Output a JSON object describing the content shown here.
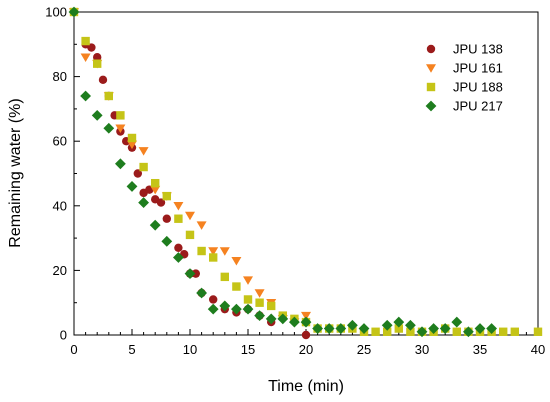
{
  "chart_data": {
    "type": "scatter",
    "xlabel": "Time (min)",
    "ylabel": "Remaining water (%)",
    "xlim": [
      0,
      40
    ],
    "ylim": [
      0,
      100
    ],
    "x_ticks": [
      "0",
      "5",
      "10",
      "15",
      "20",
      "25",
      "30",
      "35",
      "40"
    ],
    "y_ticks": [
      "0",
      "20",
      "40",
      "60",
      "80",
      "100"
    ],
    "legend_position": "top-right",
    "grid": false,
    "series": [
      {
        "name": "JPU 138",
        "marker": "circle",
        "color": "#9b1b1b",
        "points": [
          [
            0,
            100
          ],
          [
            1,
            90
          ],
          [
            1.5,
            89
          ],
          [
            2,
            86
          ],
          [
            2.5,
            79
          ],
          [
            3,
            74
          ],
          [
            3.5,
            68
          ],
          [
            4,
            63
          ],
          [
            4.5,
            60
          ],
          [
            5,
            58
          ],
          [
            5.5,
            50
          ],
          [
            6,
            44
          ],
          [
            6.5,
            45
          ],
          [
            7,
            42
          ],
          [
            7.5,
            41
          ],
          [
            8,
            36
          ],
          [
            9,
            27
          ],
          [
            9.5,
            25
          ],
          [
            10,
            19
          ],
          [
            10.5,
            19
          ],
          [
            11,
            13
          ],
          [
            12,
            11
          ],
          [
            13,
            8
          ],
          [
            14,
            7
          ],
          [
            15,
            8
          ],
          [
            16,
            6
          ],
          [
            17,
            4
          ],
          [
            20,
            0
          ]
        ]
      },
      {
        "name": "JPU 161",
        "marker": "triangle-down",
        "color": "#f58220",
        "points": [
          [
            0,
            100
          ],
          [
            1,
            86
          ],
          [
            2,
            84
          ],
          [
            3,
            74
          ],
          [
            4,
            64
          ],
          [
            5,
            59
          ],
          [
            6,
            57
          ],
          [
            7,
            45
          ],
          [
            8,
            43
          ],
          [
            9,
            40
          ],
          [
            10,
            37
          ],
          [
            11,
            34
          ],
          [
            12,
            26
          ],
          [
            13,
            26
          ],
          [
            14,
            23
          ],
          [
            15,
            17
          ],
          [
            16,
            13
          ],
          [
            17,
            10
          ],
          [
            18,
            5
          ],
          [
            19,
            4
          ],
          [
            20,
            6
          ]
        ]
      },
      {
        "name": "JPU 188",
        "marker": "square",
        "color": "#c5c417",
        "points": [
          [
            0,
            100
          ],
          [
            1,
            91
          ],
          [
            2,
            84
          ],
          [
            3,
            74
          ],
          [
            4,
            68
          ],
          [
            5,
            61
          ],
          [
            6,
            52
          ],
          [
            7,
            47
          ],
          [
            8,
            43
          ],
          [
            9,
            36
          ],
          [
            10,
            31
          ],
          [
            11,
            26
          ],
          [
            12,
            24
          ],
          [
            13,
            18
          ],
          [
            14,
            15
          ],
          [
            15,
            11
          ],
          [
            16,
            10
          ],
          [
            17,
            9
          ],
          [
            18,
            6
          ],
          [
            19,
            5
          ],
          [
            20,
            4
          ],
          [
            21,
            2
          ],
          [
            22,
            2
          ],
          [
            23,
            2
          ],
          [
            24,
            2
          ],
          [
            25,
            1
          ],
          [
            26,
            1
          ],
          [
            27,
            1
          ],
          [
            28,
            2
          ],
          [
            29,
            1
          ],
          [
            30,
            1
          ],
          [
            31,
            1
          ],
          [
            32,
            2
          ],
          [
            33,
            1
          ],
          [
            34,
            1
          ],
          [
            35,
            1
          ],
          [
            36,
            1
          ],
          [
            37,
            1
          ],
          [
            38,
            1
          ],
          [
            40,
            1
          ]
        ]
      },
      {
        "name": "JPU 217",
        "marker": "diamond",
        "color": "#1e7d1e",
        "points": [
          [
            0,
            100
          ],
          [
            1,
            74
          ],
          [
            2,
            68
          ],
          [
            3,
            64
          ],
          [
            4,
            53
          ],
          [
            5,
            46
          ],
          [
            6,
            41
          ],
          [
            7,
            34
          ],
          [
            8,
            29
          ],
          [
            9,
            24
          ],
          [
            10,
            19
          ],
          [
            11,
            13
          ],
          [
            12,
            8
          ],
          [
            13,
            9
          ],
          [
            14,
            8
          ],
          [
            15,
            8
          ],
          [
            16,
            6
          ],
          [
            17,
            5
          ],
          [
            18,
            5
          ],
          [
            19,
            4
          ],
          [
            20,
            4
          ],
          [
            21,
            2
          ],
          [
            22,
            2
          ],
          [
            23,
            2
          ],
          [
            24,
            3
          ],
          [
            25,
            2
          ],
          [
            27,
            3
          ],
          [
            28,
            4
          ],
          [
            29,
            3
          ],
          [
            30,
            1
          ],
          [
            31,
            2
          ],
          [
            32,
            2
          ],
          [
            33,
            4
          ],
          [
            34,
            1
          ],
          [
            35,
            2
          ],
          [
            36,
            2
          ]
        ]
      }
    ]
  }
}
